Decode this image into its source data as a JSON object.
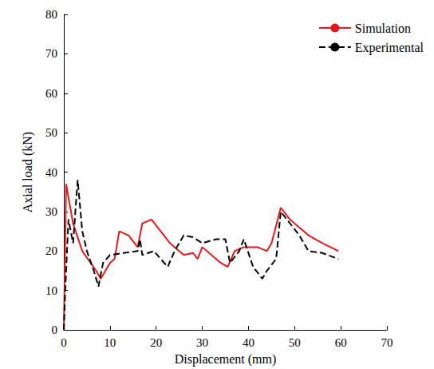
{
  "chart_data": {
    "type": "line",
    "x_label": "Displacement (mm)",
    "y_label": "Axial load (kN)",
    "xlim": [
      0,
      70
    ],
    "xticks": [
      0,
      10,
      20,
      30,
      40,
      50,
      60,
      70
    ],
    "ylim": [
      0,
      80
    ],
    "yticks": [
      0,
      10,
      20,
      30,
      40,
      50,
      60,
      70,
      80
    ],
    "grid": false,
    "legend": "upper right",
    "series": [
      {
        "name": "Simulation",
        "color": "#e31a1c",
        "line_style": "solid",
        "marker": "none",
        "x": [
          0,
          0.5,
          2,
          4,
          7,
          8,
          10,
          11,
          12,
          14,
          16,
          17,
          19,
          21,
          23,
          26,
          28,
          29,
          30,
          32,
          34,
          35.5,
          37,
          39,
          42,
          44,
          45,
          47,
          49,
          51,
          53,
          56,
          59.5
        ],
        "values": [
          0,
          37,
          27,
          20,
          15,
          13,
          17,
          18,
          25,
          24,
          21,
          27,
          28,
          25,
          22,
          19,
          19.5,
          18,
          21,
          19,
          17,
          16,
          20,
          21,
          21,
          20,
          22,
          31,
          28,
          26,
          24,
          22,
          20
        ]
      },
      {
        "name": "Experimental",
        "color": "#000000",
        "line_style": "dashed",
        "marker": "none",
        "x": [
          0,
          0.3,
          1,
          2,
          3,
          4,
          5,
          6.5,
          7.5,
          8.5,
          10,
          13,
          16,
          16.5,
          17,
          19.5,
          21,
          22.5,
          24,
          26,
          28,
          30,
          33,
          35,
          36,
          38,
          39,
          41,
          43,
          44,
          46,
          47,
          49,
          51,
          53,
          56,
          59.5
        ],
        "values": [
          0,
          10,
          28,
          22,
          38,
          25,
          20,
          15,
          11,
          17,
          19,
          19.5,
          20,
          23,
          19,
          20,
          18,
          16,
          20,
          24,
          23.5,
          22,
          23,
          23,
          17,
          20,
          23,
          16,
          13,
          15,
          18,
          30,
          27,
          24,
          20,
          19.5,
          18
        ]
      }
    ]
  }
}
